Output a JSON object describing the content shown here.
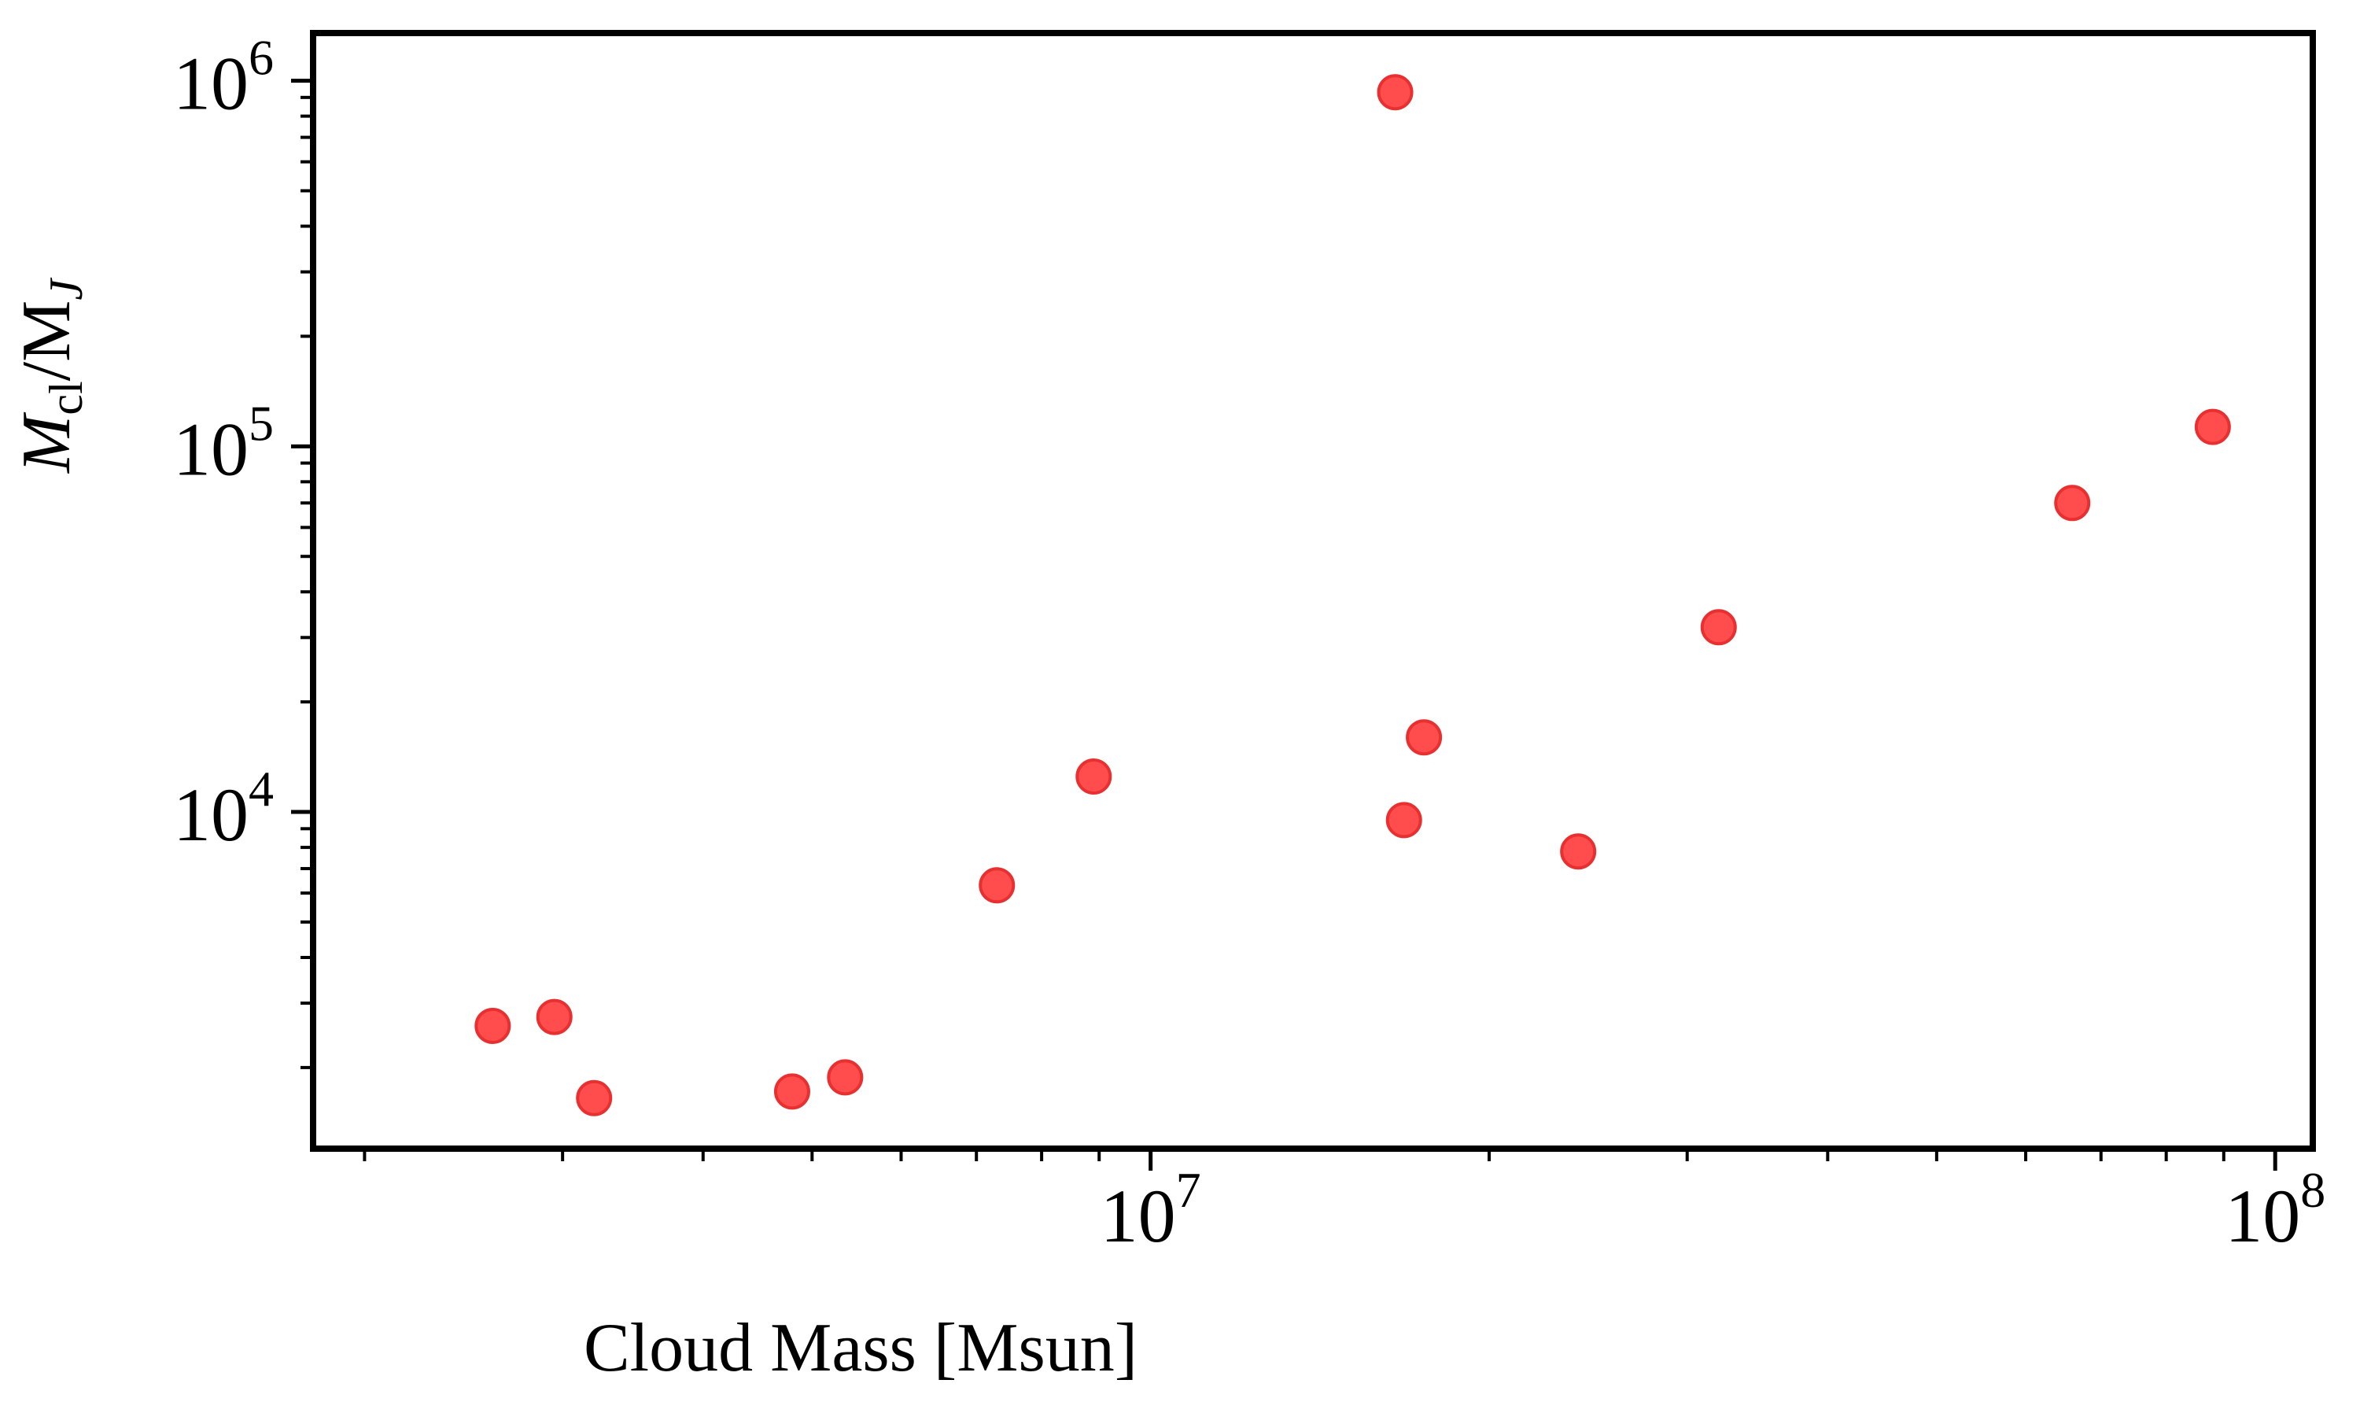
{
  "chart_data": {
    "type": "scatter",
    "xlabel": "Cloud Mass [Msun]",
    "ylabel": {
      "main": "M",
      "sub": "cl",
      "sep": "/M",
      "sub2": "J"
    },
    "xscale": "log",
    "yscale": "log",
    "xlim": [
      1800000.0,
      108000000.0
    ],
    "ylim": [
      1200.0,
      1350000.0
    ],
    "xticks": [
      {
        "value": 10000000.0,
        "base": "10",
        "exp": "7"
      },
      {
        "value": 100000000.0,
        "base": "10",
        "exp": "8"
      }
    ],
    "yticks": [
      {
        "value": 10000.0,
        "base": "10",
        "exp": "4"
      },
      {
        "value": 100000.0,
        "base": "10",
        "exp": "5"
      },
      {
        "value": 1000000.0,
        "base": "10",
        "exp": "6"
      }
    ],
    "marker_color": "#ff4d4d",
    "marker_edge": "#e83030",
    "grid": false,
    "points": [
      {
        "x": 2600000.0,
        "y": 2600.0
      },
      {
        "x": 2950000.0,
        "y": 2750.0
      },
      {
        "x": 3200000.0,
        "y": 1650.0
      },
      {
        "x": 4800000.0,
        "y": 1720.0
      },
      {
        "x": 5350000.0,
        "y": 1880.0
      },
      {
        "x": 7300000.0,
        "y": 6300.0
      },
      {
        "x": 8900000.0,
        "y": 12500.0
      },
      {
        "x": 16500000.0,
        "y": 930000.0
      },
      {
        "x": 16800000.0,
        "y": 9500.0
      },
      {
        "x": 17500000.0,
        "y": 16000.0
      },
      {
        "x": 24000000.0,
        "y": 7800.0
      },
      {
        "x": 32000000.0,
        "y": 32000.0
      },
      {
        "x": 66000000.0,
        "y": 70000.0
      },
      {
        "x": 88000000.0,
        "y": 113000.0
      }
    ]
  }
}
